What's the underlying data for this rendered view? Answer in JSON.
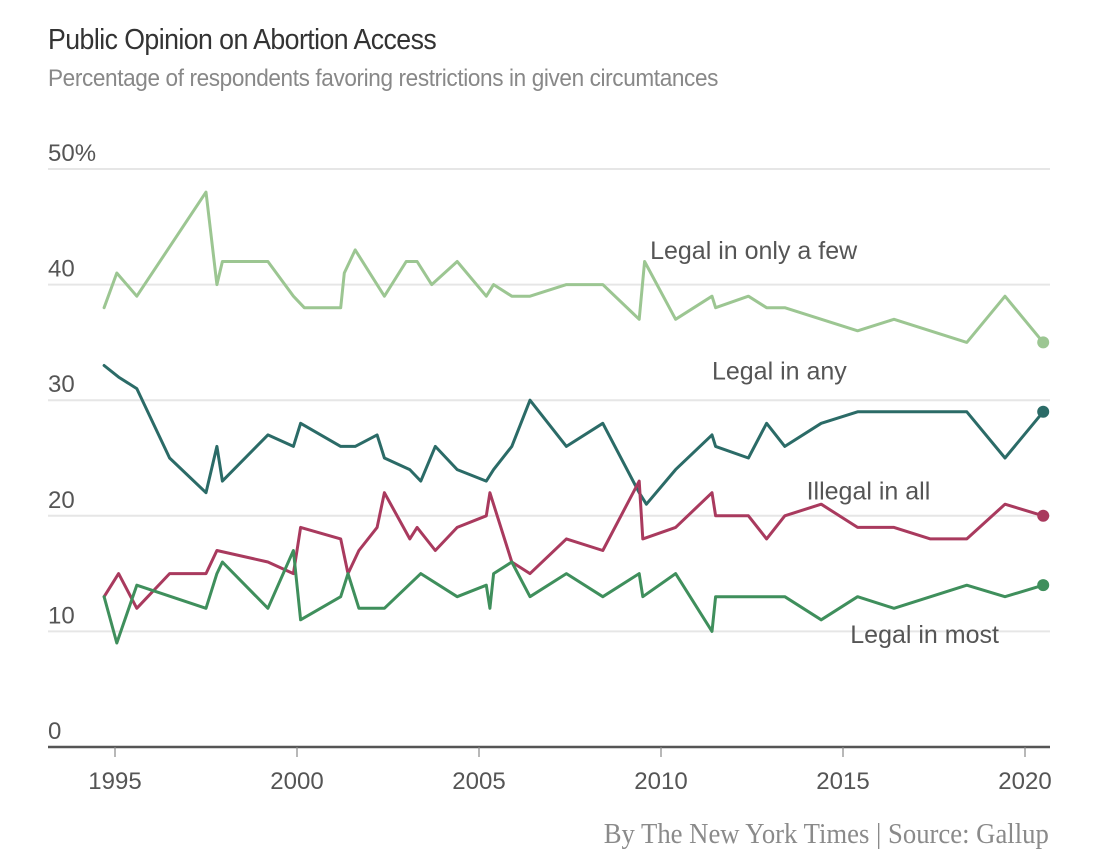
{
  "chart_data": {
    "type": "line",
    "title": "Public Opinion on Abortion Access",
    "subtitle": "Percentage of respondents favoring restrictions in given circumtances",
    "xlabel": "",
    "ylabel": "",
    "xlim": [
      1994.2,
      2020.8
    ],
    "ylim": [
      0,
      50
    ],
    "x_ticks": [
      1995,
      2000,
      2005,
      2010,
      2015,
      2020
    ],
    "x_tick_labels": [
      "1995",
      "2000",
      "2005",
      "2010",
      "2015",
      "2020"
    ],
    "y_ticks": [
      0,
      10,
      20,
      30,
      40,
      50
    ],
    "y_tick_labels": [
      "0",
      "10",
      "20",
      "30",
      "40",
      "50%"
    ],
    "grid": true,
    "legend": "inline-labels",
    "series": [
      {
        "name": "Legal in only a few",
        "color": "#9cc692",
        "label_anchor_x": 2009.7,
        "label_anchor_y": 42.2,
        "points": [
          [
            1994.7,
            38
          ],
          [
            1995.05,
            41
          ],
          [
            1995.6,
            39
          ],
          [
            1997.5,
            48
          ],
          [
            1997.8,
            40
          ],
          [
            1997.95,
            42
          ],
          [
            1999.2,
            42
          ],
          [
            1999.9,
            39
          ],
          [
            2000.2,
            38
          ],
          [
            2001.2,
            38
          ],
          [
            2001.3,
            41
          ],
          [
            2001.6,
            43
          ],
          [
            2002.4,
            39
          ],
          [
            2003.0,
            42
          ],
          [
            2003.3,
            42
          ],
          [
            2003.7,
            40
          ],
          [
            2004.4,
            42
          ],
          [
            2005.2,
            39
          ],
          [
            2005.4,
            40
          ],
          [
            2005.9,
            39
          ],
          [
            2006.4,
            39
          ],
          [
            2007.4,
            40
          ],
          [
            2008.4,
            40
          ],
          [
            2009.4,
            37
          ],
          [
            2009.55,
            42
          ],
          [
            2010.4,
            37
          ],
          [
            2011.4,
            39
          ],
          [
            2011.5,
            38
          ],
          [
            2012.4,
            39
          ],
          [
            2012.9,
            38
          ],
          [
            2013.4,
            38
          ],
          [
            2015.4,
            36
          ],
          [
            2016.4,
            37
          ],
          [
            2018.4,
            35
          ],
          [
            2019.45,
            39
          ],
          [
            2020.5,
            35
          ]
        ]
      },
      {
        "name": "Legal in any",
        "color": "#2b6b67",
        "label_anchor_x": 2011.4,
        "label_anchor_y": 31.8,
        "points": [
          [
            1994.7,
            33
          ],
          [
            1995.1,
            32
          ],
          [
            1995.6,
            31
          ],
          [
            1996.5,
            25
          ],
          [
            1997.5,
            22
          ],
          [
            1997.8,
            26
          ],
          [
            1997.95,
            23
          ],
          [
            1999.2,
            27
          ],
          [
            1999.9,
            26
          ],
          [
            2000.1,
            28
          ],
          [
            2001.2,
            26
          ],
          [
            2001.6,
            26
          ],
          [
            2002.2,
            27
          ],
          [
            2002.4,
            25
          ],
          [
            2003.1,
            24
          ],
          [
            2003.4,
            23
          ],
          [
            2003.8,
            26
          ],
          [
            2004.4,
            24
          ],
          [
            2005.2,
            23
          ],
          [
            2005.4,
            24
          ],
          [
            2005.9,
            26
          ],
          [
            2006.4,
            30
          ],
          [
            2007.4,
            26
          ],
          [
            2008.4,
            28
          ],
          [
            2009.4,
            22
          ],
          [
            2009.6,
            21
          ],
          [
            2010.4,
            24
          ],
          [
            2011.4,
            27
          ],
          [
            2011.5,
            26
          ],
          [
            2012.4,
            25
          ],
          [
            2012.9,
            28
          ],
          [
            2013.4,
            26
          ],
          [
            2014.4,
            28
          ],
          [
            2015.4,
            29
          ],
          [
            2016.4,
            29
          ],
          [
            2018.4,
            29
          ],
          [
            2019.45,
            25
          ],
          [
            2020.5,
            29
          ]
        ]
      },
      {
        "name": "Illegal in all",
        "color": "#a93a5e",
        "label_anchor_x": 2014.0,
        "label_anchor_y": 21.4,
        "points": [
          [
            1994.7,
            13
          ],
          [
            1995.1,
            15
          ],
          [
            1995.6,
            12
          ],
          [
            1996.5,
            15
          ],
          [
            1997.5,
            15
          ],
          [
            1997.8,
            17
          ],
          [
            1999.2,
            16
          ],
          [
            1999.9,
            15
          ],
          [
            2000.1,
            19
          ],
          [
            2001.2,
            18
          ],
          [
            2001.4,
            15
          ],
          [
            2001.7,
            17
          ],
          [
            2002.2,
            19
          ],
          [
            2002.4,
            22
          ],
          [
            2003.1,
            18
          ],
          [
            2003.3,
            19
          ],
          [
            2003.8,
            17
          ],
          [
            2004.4,
            19
          ],
          [
            2005.2,
            20
          ],
          [
            2005.3,
            22
          ],
          [
            2005.9,
            16
          ],
          [
            2006.4,
            15
          ],
          [
            2007.4,
            18
          ],
          [
            2008.4,
            17
          ],
          [
            2009.4,
            23
          ],
          [
            2009.5,
            18
          ],
          [
            2010.4,
            19
          ],
          [
            2011.4,
            22
          ],
          [
            2011.5,
            20
          ],
          [
            2012.4,
            20
          ],
          [
            2012.9,
            18
          ],
          [
            2013.4,
            20
          ],
          [
            2014.4,
            21
          ],
          [
            2015.4,
            19
          ],
          [
            2016.4,
            19
          ],
          [
            2017.4,
            18
          ],
          [
            2018.4,
            18
          ],
          [
            2019.45,
            21
          ],
          [
            2020.5,
            20
          ]
        ]
      },
      {
        "name": "Legal in most",
        "color": "#3f8f5c",
        "label_anchor_x": 2015.2,
        "label_anchor_y": 9.0,
        "points": [
          [
            1994.7,
            13
          ],
          [
            1995.05,
            9
          ],
          [
            1995.6,
            14
          ],
          [
            1997.5,
            12
          ],
          [
            1997.8,
            15
          ],
          [
            1997.95,
            16
          ],
          [
            1999.2,
            12
          ],
          [
            1999.9,
            17
          ],
          [
            2000.1,
            11
          ],
          [
            2001.2,
            13
          ],
          [
            2001.4,
            15
          ],
          [
            2001.7,
            12
          ],
          [
            2002.4,
            12
          ],
          [
            2003.4,
            15
          ],
          [
            2004.4,
            13
          ],
          [
            2005.2,
            14
          ],
          [
            2005.3,
            12
          ],
          [
            2005.4,
            15
          ],
          [
            2005.9,
            16
          ],
          [
            2006.4,
            13
          ],
          [
            2007.4,
            15
          ],
          [
            2008.4,
            13
          ],
          [
            2009.4,
            15
          ],
          [
            2009.5,
            13
          ],
          [
            2010.4,
            15
          ],
          [
            2011.4,
            10
          ],
          [
            2011.5,
            13
          ],
          [
            2012.4,
            13
          ],
          [
            2013.4,
            13
          ],
          [
            2014.4,
            11
          ],
          [
            2015.4,
            13
          ],
          [
            2016.4,
            12
          ],
          [
            2018.4,
            14
          ],
          [
            2019.45,
            13
          ],
          [
            2020.5,
            14
          ]
        ]
      }
    ],
    "endpoint_markers": true
  },
  "credit": "By The New York Times | Source: Gallup"
}
